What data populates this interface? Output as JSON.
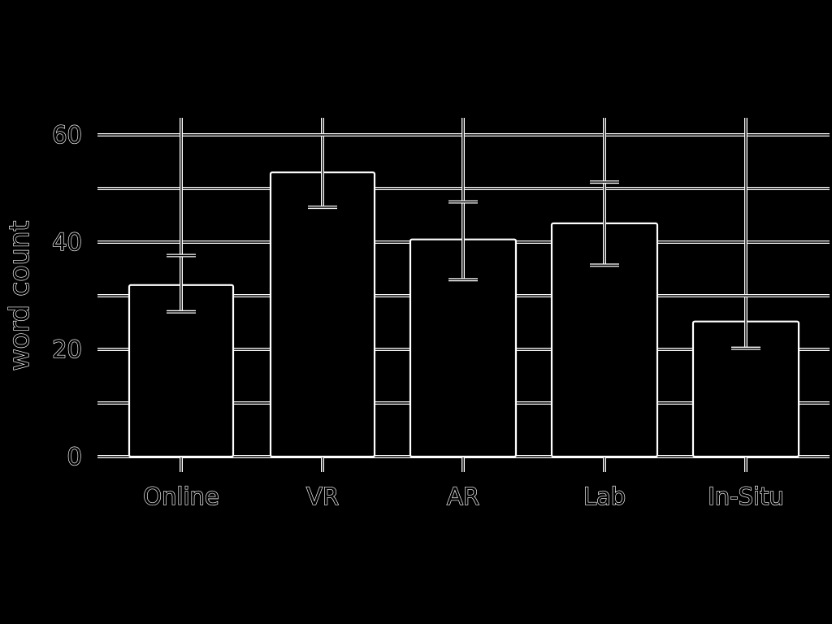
{
  "chart_data": {
    "type": "bar",
    "categories": [
      "Online",
      "VR",
      "AR",
      "Lab",
      "In-Situ"
    ],
    "values": [
      32,
      53,
      40.5,
      43.5,
      25.2
    ],
    "error_low": [
      27,
      46.5,
      33,
      35.7,
      20.2
    ],
    "error_high": [
      37.5,
      60,
      47.5,
      51.2,
      30
    ],
    "title": "",
    "xlabel": "",
    "ylabel": "word count",
    "ylim": [
      0,
      60
    ],
    "yticks": [
      0,
      20,
      40,
      60
    ],
    "grid": true,
    "colors": {
      "background": "#000000",
      "outline": "#ffffff",
      "bar_fill": "#000000"
    }
  }
}
